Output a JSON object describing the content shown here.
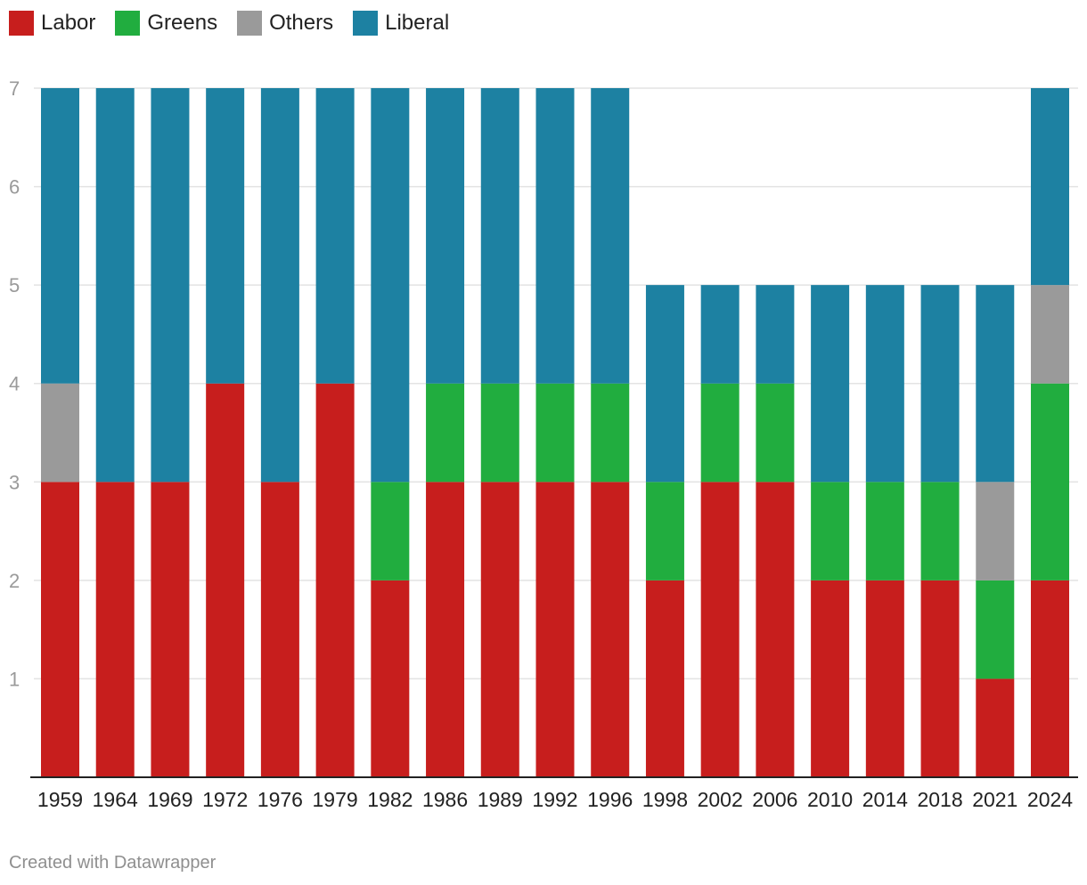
{
  "chart_data": {
    "type": "bar",
    "stacked": true,
    "categories": [
      "1959",
      "1964",
      "1969",
      "1972",
      "1976",
      "1979",
      "1982",
      "1986",
      "1989",
      "1992",
      "1996",
      "1998",
      "2002",
      "2006",
      "2010",
      "2014",
      "2018",
      "2021",
      "2024"
    ],
    "series": [
      {
        "name": "Labor",
        "color": "#c71e1d",
        "values": [
          3,
          3,
          3,
          4,
          3,
          4,
          2,
          3,
          3,
          3,
          3,
          2,
          3,
          3,
          2,
          2,
          2,
          1,
          2
        ]
      },
      {
        "name": "Greens",
        "color": "#21ad3f",
        "values": [
          0,
          0,
          0,
          0,
          0,
          0,
          1,
          1,
          1,
          1,
          1,
          1,
          1,
          1,
          1,
          1,
          1,
          1,
          2
        ]
      },
      {
        "name": "Others",
        "color": "#9a9a9a",
        "values": [
          1,
          0,
          0,
          0,
          0,
          0,
          0,
          0,
          0,
          0,
          0,
          0,
          0,
          0,
          0,
          0,
          0,
          1,
          1
        ]
      },
      {
        "name": "Liberal",
        "color": "#1d81a2",
        "values": [
          3,
          4,
          4,
          3,
          4,
          3,
          4,
          3,
          3,
          3,
          3,
          2,
          1,
          1,
          2,
          2,
          2,
          2,
          2
        ]
      }
    ],
    "y_ticks": [
      1,
      2,
      3,
      4,
      5,
      6,
      7
    ],
    "ylim": [
      0,
      7
    ],
    "legend_position": "top-left",
    "grid": true
  },
  "footer": {
    "credit": "Created with Datawrapper"
  }
}
